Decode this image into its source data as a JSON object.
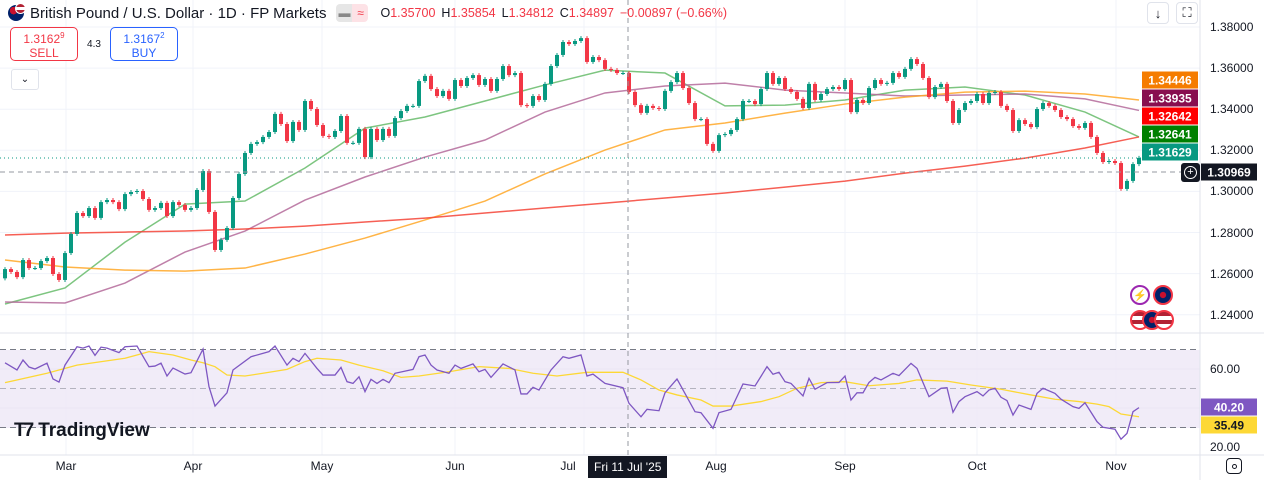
{
  "header": {
    "title": "British Pound / U.S. Dollar · 1D · FP Markets",
    "badge_icons": [
      "market-closed-icon",
      "delayed-data-icon"
    ],
    "badge_symbol": "≈",
    "ohlc": {
      "o_label": "O",
      "o": "1.35700",
      "h_label": "H",
      "h": "1.35854",
      "l_label": "L",
      "l": "1.34812",
      "c_label": "C",
      "c": "1.34897",
      "change": "−0.00897 (−0.66%)"
    }
  },
  "trade": {
    "sell_price": "1.3162",
    "sell_pip": "9",
    "sell_label": "SELL",
    "spread": "4.3",
    "buy_price": "1.3167",
    "buy_pip": "2",
    "buy_label": "BUY"
  },
  "price_axis": {
    "ticks": [
      "1.38000",
      "1.36000",
      "1.34000",
      "1.32000",
      "1.30000",
      "1.28000",
      "1.26000",
      "1.24000"
    ]
  },
  "rsi_axis": {
    "ticks": [
      "60.00",
      "20.00"
    ]
  },
  "time_axis": {
    "months": [
      "Mar",
      "Apr",
      "May",
      "Jun",
      "Jul",
      "Aug",
      "Sep",
      "Oct",
      "Nov"
    ],
    "crosshair_date": "Fri 11 Jul '25"
  },
  "price_labels": {
    "ma_orange": {
      "value": "1.34446",
      "color": "#F57C00"
    },
    "ma_purple": {
      "value": "1.33935",
      "color": "#880E4F"
    },
    "ma_red": {
      "value": "1.32642",
      "color": "#FF0000"
    },
    "ma_green": {
      "value": "1.32641",
      "color": "#008000"
    },
    "last": {
      "value": "1.31629",
      "color": "#089981"
    },
    "crosshair": {
      "value": "1.30969",
      "color": "#131722"
    }
  },
  "rsi_labels": {
    "rsi": {
      "value": "40.20",
      "color": "#7E57C2"
    },
    "rsi_ma": {
      "value": "35.49",
      "color": "#FDD835"
    }
  },
  "logo": {
    "text": "TradingView"
  },
  "colors": {
    "up": "#089981",
    "down": "#F23645",
    "rsi": "#7E57C2",
    "rsi_ma": "#FDD835",
    "rsi_band": "#EDE7F6"
  },
  "chart_data": [
    {
      "type": "candlestick",
      "title": "British Pound / U.S. Dollar · 1D · FP Markets",
      "ylim": [
        1.23,
        1.385
      ],
      "first_open": 1.2577,
      "closes": [
        1.2622,
        1.2608,
        1.2583,
        1.2666,
        1.2627,
        1.2627,
        1.2661,
        1.2676,
        1.2598,
        1.2569,
        1.27,
        1.2793,
        1.2895,
        1.288,
        1.2919,
        1.2871,
        1.2948,
        1.2958,
        1.2948,
        1.2914,
        1.2987,
        1.2997,
        1.3002,
        1.2963,
        1.291,
        1.2919,
        1.2944,
        1.288,
        1.2948,
        1.2934,
        1.291,
        1.2919,
        1.3007,
        1.3099,
        1.29,
        1.2715,
        1.2764,
        1.2822,
        1.2968,
        1.3085,
        1.3187,
        1.3231,
        1.324,
        1.3265,
        1.3289,
        1.3377,
        1.3328,
        1.3245,
        1.3338,
        1.3299,
        1.344,
        1.3401,
        1.3323,
        1.327,
        1.3265,
        1.3294,
        1.3367,
        1.3236,
        1.3236,
        1.3304,
        1.3167,
        1.3304,
        1.325,
        1.3304,
        1.327,
        1.3357,
        1.3391,
        1.3416,
        1.3416,
        1.3537,
        1.3562,
        1.3498,
        1.3464,
        1.3489,
        1.345,
        1.3542,
        1.3513,
        1.3552,
        1.3566,
        1.3518,
        1.3547,
        1.3489,
        1.3547,
        1.361,
        1.3566,
        1.3576,
        1.342,
        1.3416,
        1.3464,
        1.3445,
        1.3523,
        1.361,
        1.3664,
        1.3727,
        1.3717,
        1.3732,
        1.3746,
        1.363,
        1.3654,
        1.3639,
        1.3596,
        1.3591,
        1.3576,
        1.3576,
        1.3484,
        1.342,
        1.3382,
        1.3416,
        1.3406,
        1.3401,
        1.3489,
        1.3532,
        1.3576,
        1.3503,
        1.343,
        1.3352,
        1.3352,
        1.3231,
        1.3197,
        1.3274,
        1.3279,
        1.3299,
        1.3352,
        1.344,
        1.344,
        1.3425,
        1.3498,
        1.3576,
        1.3523,
        1.3552,
        1.3498,
        1.3484,
        1.345,
        1.3406,
        1.3523,
        1.3445,
        1.3474,
        1.3498,
        1.3508,
        1.3498,
        1.3542,
        1.3386,
        1.3445,
        1.343,
        1.3503,
        1.3542,
        1.3523,
        1.3528,
        1.3576,
        1.3557,
        1.3596,
        1.3644,
        1.362,
        1.3552,
        1.3459,
        1.3508,
        1.3523,
        1.344,
        1.3333,
        1.3396,
        1.343,
        1.344,
        1.3474,
        1.343,
        1.3479,
        1.3484,
        1.3416,
        1.3396,
        1.3294,
        1.3347,
        1.3328,
        1.3313,
        1.3401,
        1.343,
        1.3416,
        1.3396,
        1.3362,
        1.3352,
        1.3318,
        1.3309,
        1.3333,
        1.3265,
        1.3187,
        1.3143,
        1.3148,
        1.3138,
        1.3012,
        1.3051,
        1.3133,
        1.3163
      ],
      "moving_averages_every_10_candles": {
        "green": [
          1.2452,
          1.253,
          1.2753,
          1.2938,
          1.2953,
          1.3114,
          1.3308,
          1.3362,
          1.344,
          1.3518,
          1.359,
          1.3576,
          1.3416,
          1.342,
          1.3445,
          1.3493,
          1.3508,
          1.3469,
          1.3386,
          1.3265
        ],
        "purple": [
          1.2462,
          1.2457,
          1.2554,
          1.2705,
          1.2807,
          1.2958,
          1.307,
          1.3167,
          1.325,
          1.3386,
          1.3479,
          1.3513,
          1.3527,
          1.3493,
          1.3479,
          1.3464,
          1.3469,
          1.3474,
          1.345,
          1.3394
        ],
        "orange": [
          1.2666,
          1.2632,
          1.2617,
          1.2612,
          1.2627,
          1.2695,
          1.2773,
          1.2861,
          1.2953,
          1.3085,
          1.3201,
          1.3299,
          1.3333,
          1.3381,
          1.3425,
          1.3459,
          1.3483,
          1.3488,
          1.3474,
          1.3445
        ],
        "red": [
          1.2788,
          1.2797,
          1.2802,
          1.2807,
          1.2817,
          1.2831,
          1.2851,
          1.287,
          1.2895,
          1.2919,
          1.2943,
          1.2968,
          1.2992,
          1.3021,
          1.305,
          1.3089,
          1.3123,
          1.3162,
          1.3211,
          1.3265
        ]
      },
      "last_price": 1.31629,
      "crosshair_price": 1.30969
    },
    {
      "type": "line",
      "ylim": [
        17,
        78
      ],
      "bands": [
        70,
        50,
        30
      ],
      "rsi_points_by_candle": [
        [
          0,
          63.2
        ],
        [
          2,
          59.5
        ],
        [
          3,
          64.6
        ],
        [
          4,
          61
        ],
        [
          5,
          60
        ],
        [
          7,
          63
        ],
        [
          8,
          54.9
        ],
        [
          9,
          53.3
        ],
        [
          10,
          62
        ],
        [
          12,
          71.4
        ],
        [
          13,
          70.7
        ],
        [
          14,
          71.8
        ],
        [
          15,
          67
        ],
        [
          16,
          71.2
        ],
        [
          17,
          70.7
        ],
        [
          19,
          68.4
        ],
        [
          20,
          71.4
        ],
        [
          22,
          71.8
        ],
        [
          24,
          61.2
        ],
        [
          25,
          61.5
        ],
        [
          26,
          63
        ],
        [
          27,
          56.4
        ],
        [
          28,
          60.5
        ],
        [
          30,
          57.4
        ],
        [
          31,
          58.1
        ],
        [
          33,
          70.2
        ],
        [
          34,
          50.9
        ],
        [
          35,
          41
        ],
        [
          37,
          47.8
        ],
        [
          38,
          59.5
        ],
        [
          41,
          66.3
        ],
        [
          44,
          68.9
        ],
        [
          45,
          71.8
        ],
        [
          47,
          62
        ],
        [
          48,
          65.5
        ],
        [
          49,
          63.8
        ],
        [
          50,
          68
        ],
        [
          52,
          60.3
        ],
        [
          53,
          56.9
        ],
        [
          55,
          56.9
        ],
        [
          56,
          60.8
        ],
        [
          57,
          53.5
        ],
        [
          58,
          52.6
        ],
        [
          59,
          56
        ],
        [
          60,
          48.4
        ],
        [
          61,
          54.7
        ],
        [
          62,
          52.6
        ],
        [
          63,
          54.7
        ],
        [
          64,
          53
        ],
        [
          65,
          57.8
        ],
        [
          68,
          59.8
        ],
        [
          69,
          66.3
        ],
        [
          70,
          67.2
        ],
        [
          71,
          62
        ],
        [
          72,
          59.5
        ],
        [
          74,
          57.8
        ],
        [
          75,
          62
        ],
        [
          76,
          60.3
        ],
        [
          78,
          62.6
        ],
        [
          79,
          58.6
        ],
        [
          80,
          59.8
        ],
        [
          81,
          55.7
        ],
        [
          83,
          62.6
        ],
        [
          85,
          59.5
        ],
        [
          86,
          47.2
        ],
        [
          87,
          47.2
        ],
        [
          88,
          50.6
        ],
        [
          89,
          49.2
        ],
        [
          91,
          59.5
        ],
        [
          93,
          66.3
        ],
        [
          94,
          65.5
        ],
        [
          96,
          67.2
        ],
        [
          97,
          56.4
        ],
        [
          98,
          57.4
        ],
        [
          100,
          52.6
        ],
        [
          103,
          50.4
        ],
        [
          104,
          42.4
        ],
        [
          106,
          35.5
        ],
        [
          107,
          39.3
        ],
        [
          109,
          38.6
        ],
        [
          110,
          47.8
        ],
        [
          112,
          54.9
        ],
        [
          115,
          38.1
        ],
        [
          116,
          37.6
        ],
        [
          118,
          29.6
        ],
        [
          119,
          37.6
        ],
        [
          121,
          39.3
        ],
        [
          123,
          52.3
        ],
        [
          125,
          51.3
        ],
        [
          127,
          61.2
        ],
        [
          128,
          57.3
        ],
        [
          129,
          58.3
        ],
        [
          130,
          53.5
        ],
        [
          131,
          52.6
        ],
        [
          133,
          46.2
        ],
        [
          134,
          55.2
        ],
        [
          135,
          49.6
        ],
        [
          137,
          53
        ],
        [
          139,
          53.1
        ],
        [
          140,
          56.4
        ],
        [
          141,
          44.1
        ],
        [
          142,
          47.8
        ],
        [
          143,
          47.8
        ],
        [
          144,
          53.1
        ],
        [
          145,
          55.7
        ],
        [
          146,
          54.4
        ],
        [
          148,
          57.8
        ],
        [
          149,
          56.6
        ],
        [
          151,
          62.9
        ],
        [
          152,
          60.3
        ],
        [
          154,
          45.8
        ],
        [
          156,
          50.1
        ],
        [
          157,
          50.4
        ],
        [
          158,
          37.8
        ],
        [
          159,
          43.3
        ],
        [
          160,
          45.8
        ],
        [
          162,
          48.4
        ],
        [
          163,
          46.2
        ],
        [
          164,
          49.2
        ],
        [
          165,
          50.1
        ],
        [
          166,
          45.5
        ],
        [
          167,
          43.8
        ],
        [
          168,
          36.4
        ],
        [
          169,
          41.5
        ],
        [
          171,
          39.3
        ],
        [
          172,
          47.5
        ],
        [
          173,
          50.1
        ],
        [
          175,
          47.5
        ],
        [
          176,
          44.5
        ],
        [
          178,
          40.7
        ],
        [
          179,
          39.8
        ],
        [
          180,
          42.7
        ],
        [
          182,
          33
        ],
        [
          183,
          30.1
        ],
        [
          185,
          29.1
        ],
        [
          186,
          24
        ],
        [
          187,
          27
        ],
        [
          188,
          38.1
        ],
        [
          189,
          40.2
        ]
      ],
      "rsi_ma_points_by_candle": [
        [
          0,
          53
        ],
        [
          7,
          57.8
        ],
        [
          12,
          62
        ],
        [
          20,
          65.5
        ],
        [
          22,
          67.2
        ],
        [
          24,
          68.9
        ],
        [
          28,
          67.2
        ],
        [
          31,
          64.6
        ],
        [
          33,
          63.2
        ],
        [
          35,
          61.2
        ],
        [
          37,
          56.9
        ],
        [
          40,
          56.4
        ],
        [
          43,
          57.8
        ],
        [
          47,
          59.8
        ],
        [
          50,
          63.8
        ],
        [
          52,
          65.5
        ],
        [
          56,
          64.6
        ],
        [
          59,
          62
        ],
        [
          63,
          59.1
        ],
        [
          66,
          55.7
        ],
        [
          69,
          56.4
        ],
        [
          74,
          58.6
        ],
        [
          79,
          61.2
        ],
        [
          84,
          60.3
        ],
        [
          88,
          57.8
        ],
        [
          92,
          56.4
        ],
        [
          97,
          58.3
        ],
        [
          103,
          58.3
        ],
        [
          106,
          54.4
        ],
        [
          109,
          49.2
        ],
        [
          112,
          46.7
        ],
        [
          116,
          44.1
        ],
        [
          118,
          41
        ],
        [
          121,
          41
        ],
        [
          126,
          43.3
        ],
        [
          129,
          45.8
        ],
        [
          132,
          50.1
        ],
        [
          136,
          53
        ],
        [
          140,
          53.5
        ],
        [
          144,
          51.4
        ],
        [
          149,
          52.6
        ],
        [
          152,
          54.4
        ],
        [
          157,
          53.8
        ],
        [
          161,
          51.8
        ],
        [
          166,
          49.6
        ],
        [
          171,
          46.7
        ],
        [
          175,
          44.5
        ],
        [
          179,
          43.3
        ],
        [
          182,
          42
        ],
        [
          184,
          40.7
        ],
        [
          186,
          36.9
        ],
        [
          189,
          35.5
        ]
      ]
    }
  ]
}
